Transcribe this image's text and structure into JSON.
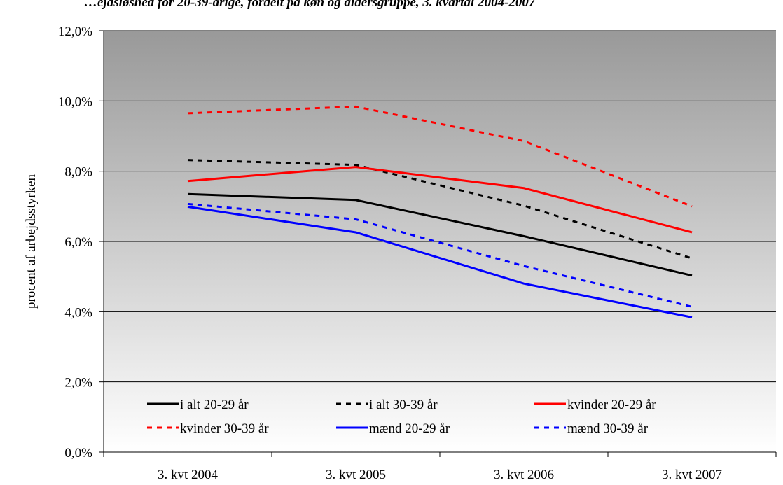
{
  "chart_data": {
    "type": "line",
    "title_fragment": "…ejdsløshed for 20-39-årige, fordelt på køn og aldersgruppe, 3. kvartal 2004-2007",
    "ylabel": "procent af arbejdsstyrken",
    "xlabel": "",
    "categories": [
      "3. kvt 2004",
      "3. kvt 2005",
      "3. kvt 2006",
      "3. kvt 2007"
    ],
    "ylim": [
      0,
      12
    ],
    "yticks": [
      0,
      2,
      4,
      6,
      8,
      10,
      12
    ],
    "ytick_labels": [
      "0,0%",
      "2,0%",
      "4,0%",
      "6,0%",
      "8,0%",
      "10,0%",
      "12,0%"
    ],
    "grid": true,
    "legend_position": "bottom-inside",
    "series": [
      {
        "name": "i alt 20-29 år",
        "values": [
          7.35,
          7.18,
          6.15,
          5.03
        ],
        "color": "#000000",
        "dash": "solid"
      },
      {
        "name": "i alt 30-39 år",
        "values": [
          8.32,
          8.18,
          7.02,
          5.52
        ],
        "color": "#000000",
        "dash": "dashed"
      },
      {
        "name": "kvinder 20-29 år",
        "values": [
          7.72,
          8.12,
          7.52,
          6.26
        ],
        "color": "#ff0000",
        "dash": "solid"
      },
      {
        "name": "kvinder 30-39 år",
        "values": [
          9.65,
          9.84,
          8.86,
          7.0
        ],
        "color": "#ff0000",
        "dash": "dashed"
      },
      {
        "name": "mænd 20-29 år",
        "values": [
          6.99,
          6.26,
          4.8,
          3.84
        ],
        "color": "#0000ff",
        "dash": "solid"
      },
      {
        "name": "mænd 30-39 år",
        "values": [
          7.07,
          6.63,
          5.3,
          4.14
        ],
        "color": "#0000ff",
        "dash": "dashed"
      }
    ],
    "colors": {
      "plot_bg_top": "#999999",
      "plot_bg_bottom": "#ffffff",
      "gridline": "#000000",
      "axis": "#000000"
    }
  }
}
